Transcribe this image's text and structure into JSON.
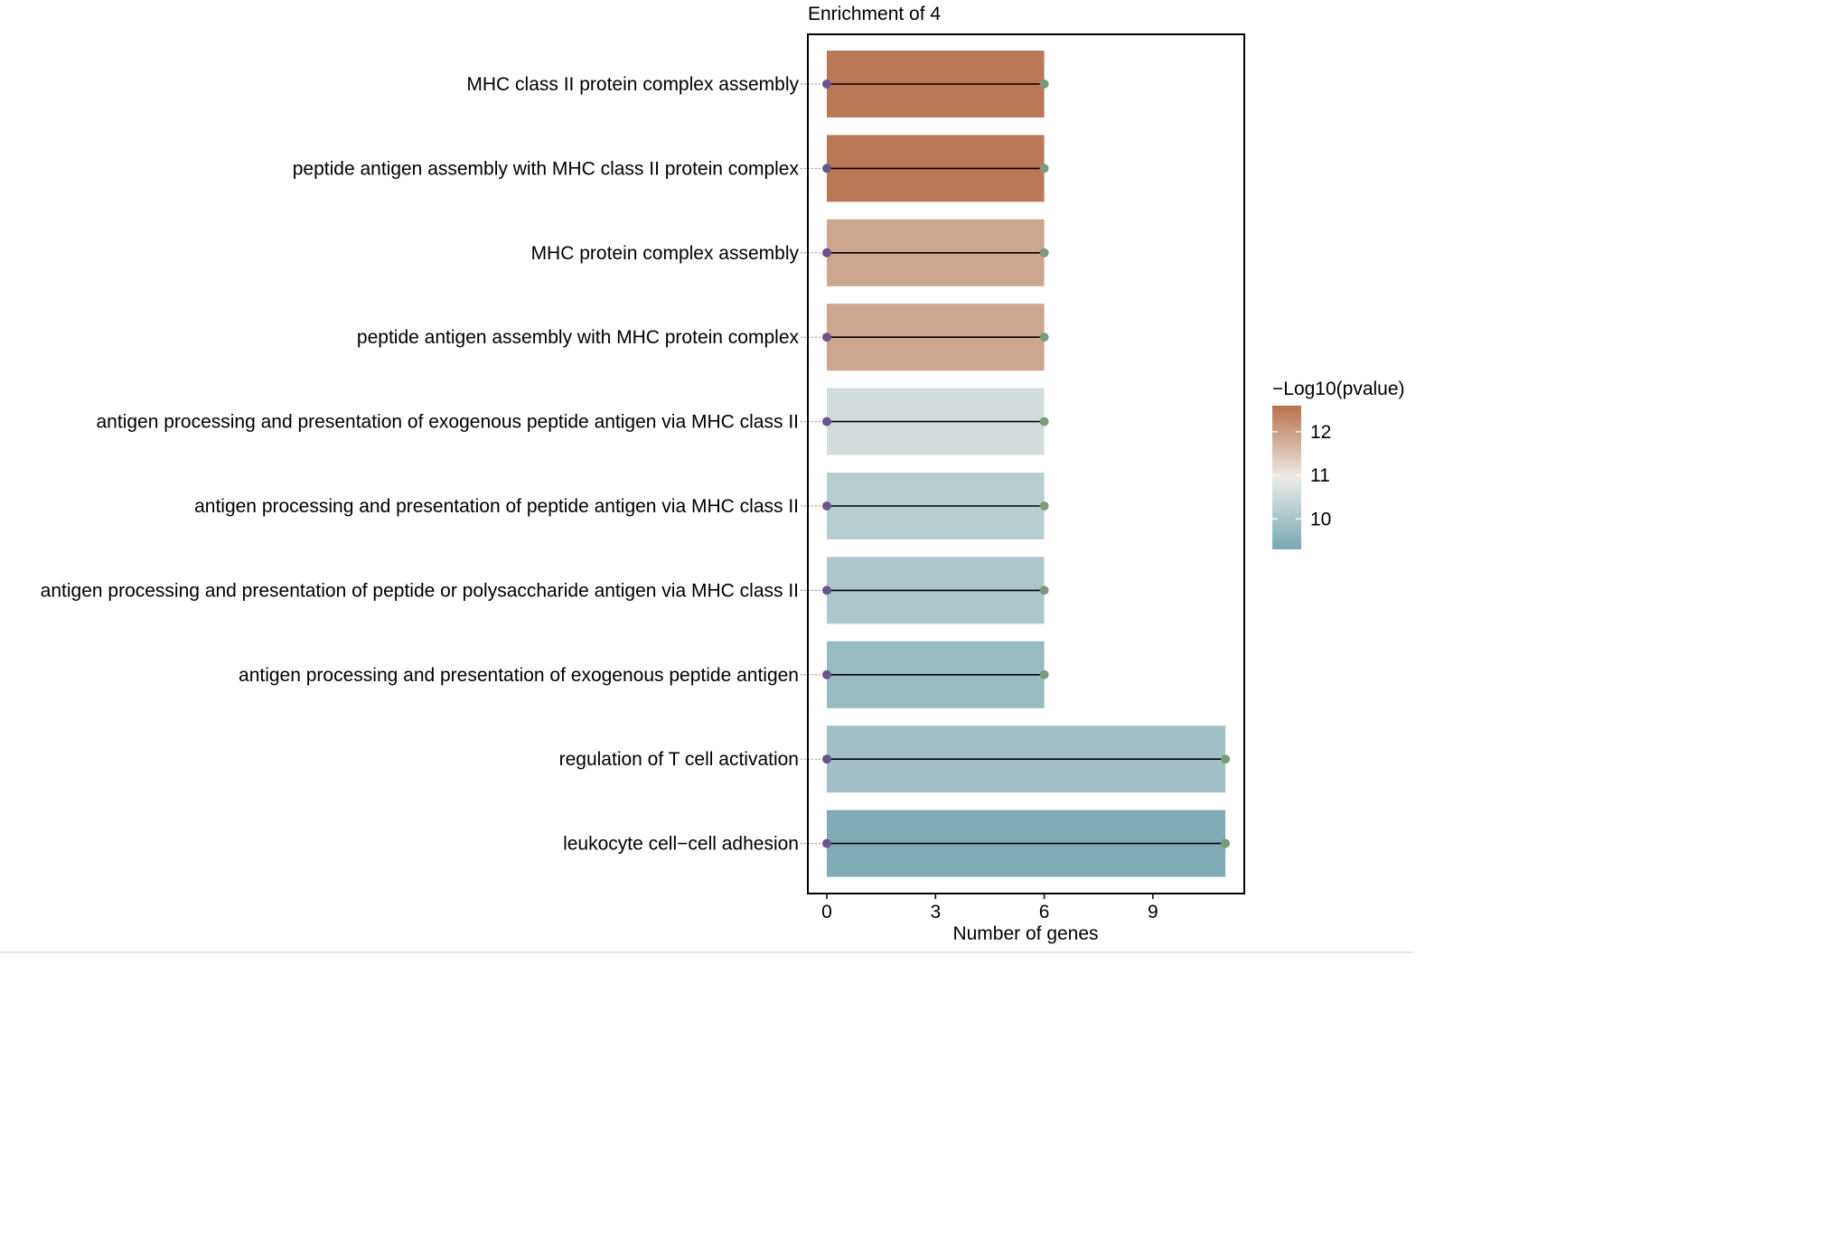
{
  "chart_data": {
    "type": "bar",
    "title": "Enrichment of 4",
    "xlabel": "Number of genes",
    "ylabel": "",
    "xlim": [
      -0.5,
      11.5
    ],
    "xticks": [
      0,
      3,
      6,
      9
    ],
    "orientation": "horizontal",
    "categories": [
      "MHC class II protein complex assembly",
      "peptide antigen assembly with MHC class II protein complex",
      "MHC protein complex assembly",
      "peptide antigen assembly with MHC protein complex",
      "antigen processing and presentation of exogenous peptide antigen via MHC class II",
      "antigen processing and presentation of peptide antigen via MHC class II",
      "antigen processing and presentation of peptide or polysaccharide antigen via MHC class II",
      "antigen processing and presentation of exogenous peptide antigen",
      "regulation of T cell activation",
      "leukocyte cell−cell adhesion"
    ],
    "values": [
      6,
      6,
      6,
      6,
      6,
      6,
      6,
      6,
      11,
      11
    ],
    "color_values": [
      12.5,
      12.5,
      11.9,
      11.9,
      10.6,
      10.2,
      10.05,
      9.75,
      9.9,
      9.4
    ],
    "legend": {
      "title": "−Log10(pvalue)",
      "ticks": [
        12,
        11,
        10
      ],
      "range": [
        9.3,
        12.6
      ],
      "placement": "right",
      "colors": {
        "low": "#78a8b2",
        "mid": "#ecebe9",
        "high": "#b8714c"
      }
    },
    "lollipop": {
      "start_color": "#6a5490",
      "end_color": "#7c9a7a",
      "line_color": "#000000"
    },
    "grid": false
  }
}
